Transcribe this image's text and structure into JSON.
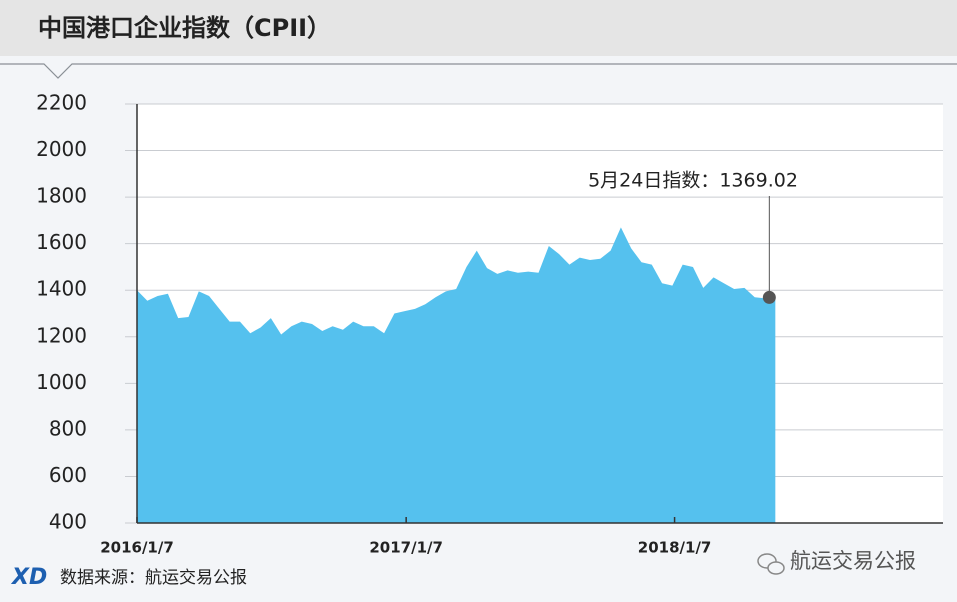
{
  "chart_data": {
    "type": "area",
    "title": "中国港口企业指数（CPII）",
    "x": [
      "2016/1/7",
      "2016/1/21",
      "2016/2/4",
      "2016/2/18",
      "2016/3/3",
      "2016/3/17",
      "2016/3/31",
      "2016/4/14",
      "2016/4/28",
      "2016/5/12",
      "2016/5/26",
      "2016/6/9",
      "2016/6/23",
      "2016/7/7",
      "2016/7/21",
      "2016/8/4",
      "2016/8/18",
      "2016/9/1",
      "2016/9/15",
      "2016/9/29",
      "2016/10/13",
      "2016/10/27",
      "2016/11/10",
      "2016/11/24",
      "2016/12/8",
      "2016/12/22",
      "2017/1/5",
      "2017/1/19",
      "2017/2/2",
      "2017/2/16",
      "2017/3/2",
      "2017/3/16",
      "2017/3/30",
      "2017/4/13",
      "2017/4/27",
      "2017/5/11",
      "2017/5/25",
      "2017/6/8",
      "2017/6/22",
      "2017/7/6",
      "2017/7/20",
      "2017/8/3",
      "2017/8/17",
      "2017/8/31",
      "2017/9/14",
      "2017/9/28",
      "2017/10/12",
      "2017/10/26",
      "2017/11/9",
      "2017/11/23",
      "2017/12/7",
      "2017/12/21",
      "2018/1/4",
      "2018/1/18",
      "2018/2/1",
      "2018/2/15",
      "2018/3/1",
      "2018/3/15",
      "2018/3/29",
      "2018/4/12",
      "2018/4/26",
      "2018/5/10",
      "2018/5/24"
    ],
    "values": [
      1400,
      1355,
      1375,
      1385,
      1280,
      1285,
      1395,
      1375,
      1320,
      1265,
      1265,
      1215,
      1240,
      1280,
      1210,
      1245,
      1265,
      1255,
      1225,
      1245,
      1230,
      1265,
      1245,
      1245,
      1215,
      1300,
      1310,
      1320,
      1340,
      1370,
      1395,
      1405,
      1500,
      1570,
      1495,
      1470,
      1485,
      1475,
      1480,
      1475,
      1590,
      1555,
      1510,
      1540,
      1530,
      1535,
      1570,
      1670,
      1580,
      1520,
      1510,
      1430,
      1420,
      1510,
      1500,
      1410,
      1455,
      1430,
      1405,
      1410,
      1370,
      1365,
      1369.02
    ],
    "color": "#55c1ee",
    "xlim": [
      "2016/1/7",
      "2019/1/7"
    ],
    "xticks": [
      "2016/1/7",
      "2017/1/7",
      "2018/1/7"
    ],
    "ylim": [
      400,
      2200
    ],
    "yticks": [
      400,
      600,
      800,
      1000,
      1200,
      1400,
      1600,
      1800,
      2000,
      2200
    ],
    "grid": true,
    "annotation": "5月24日指数：1369.02",
    "source": "数据来源：航运交易公报",
    "watermark": "航运交易公报"
  }
}
